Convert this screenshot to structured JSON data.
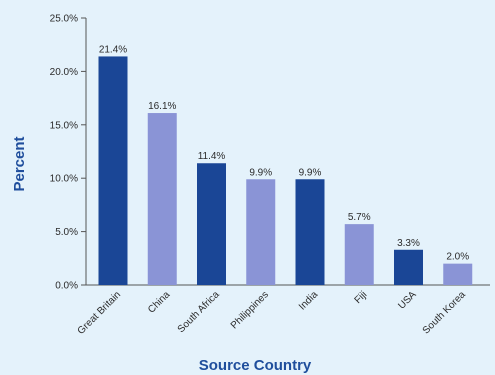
{
  "chart_data": {
    "type": "bar",
    "title": "",
    "xlabel": "Source Country",
    "ylabel": "Percent",
    "categories": [
      "Great Britain",
      "China",
      "South Africa",
      "Philippines",
      "India",
      "Fiji",
      "USA",
      "South Korea"
    ],
    "values": [
      21.4,
      16.1,
      11.4,
      9.9,
      9.9,
      5.7,
      3.3,
      2.0
    ],
    "value_labels": [
      "21.4%",
      "16.1%",
      "11.4%",
      "9.9%",
      "9.9%",
      "5.7%",
      "3.3%",
      "2.0%"
    ],
    "yticks": [
      0,
      5,
      10,
      15,
      20,
      25
    ],
    "ytick_labels": [
      "0.0%",
      "5.0%",
      "10.0%",
      "15.0%",
      "20.0%",
      "25.0%"
    ],
    "ylim": [
      0,
      25
    ],
    "grid": false,
    "legend": "none",
    "colors": {
      "dark_bar": "#1a4696",
      "light_bar": "#8a94d6",
      "axis_title": "#1f4e9c",
      "background": "#e4f2fb",
      "axis_line": "#555555"
    },
    "bar_color_pattern": [
      "dark",
      "light",
      "dark",
      "light",
      "dark",
      "light",
      "dark",
      "light"
    ]
  }
}
